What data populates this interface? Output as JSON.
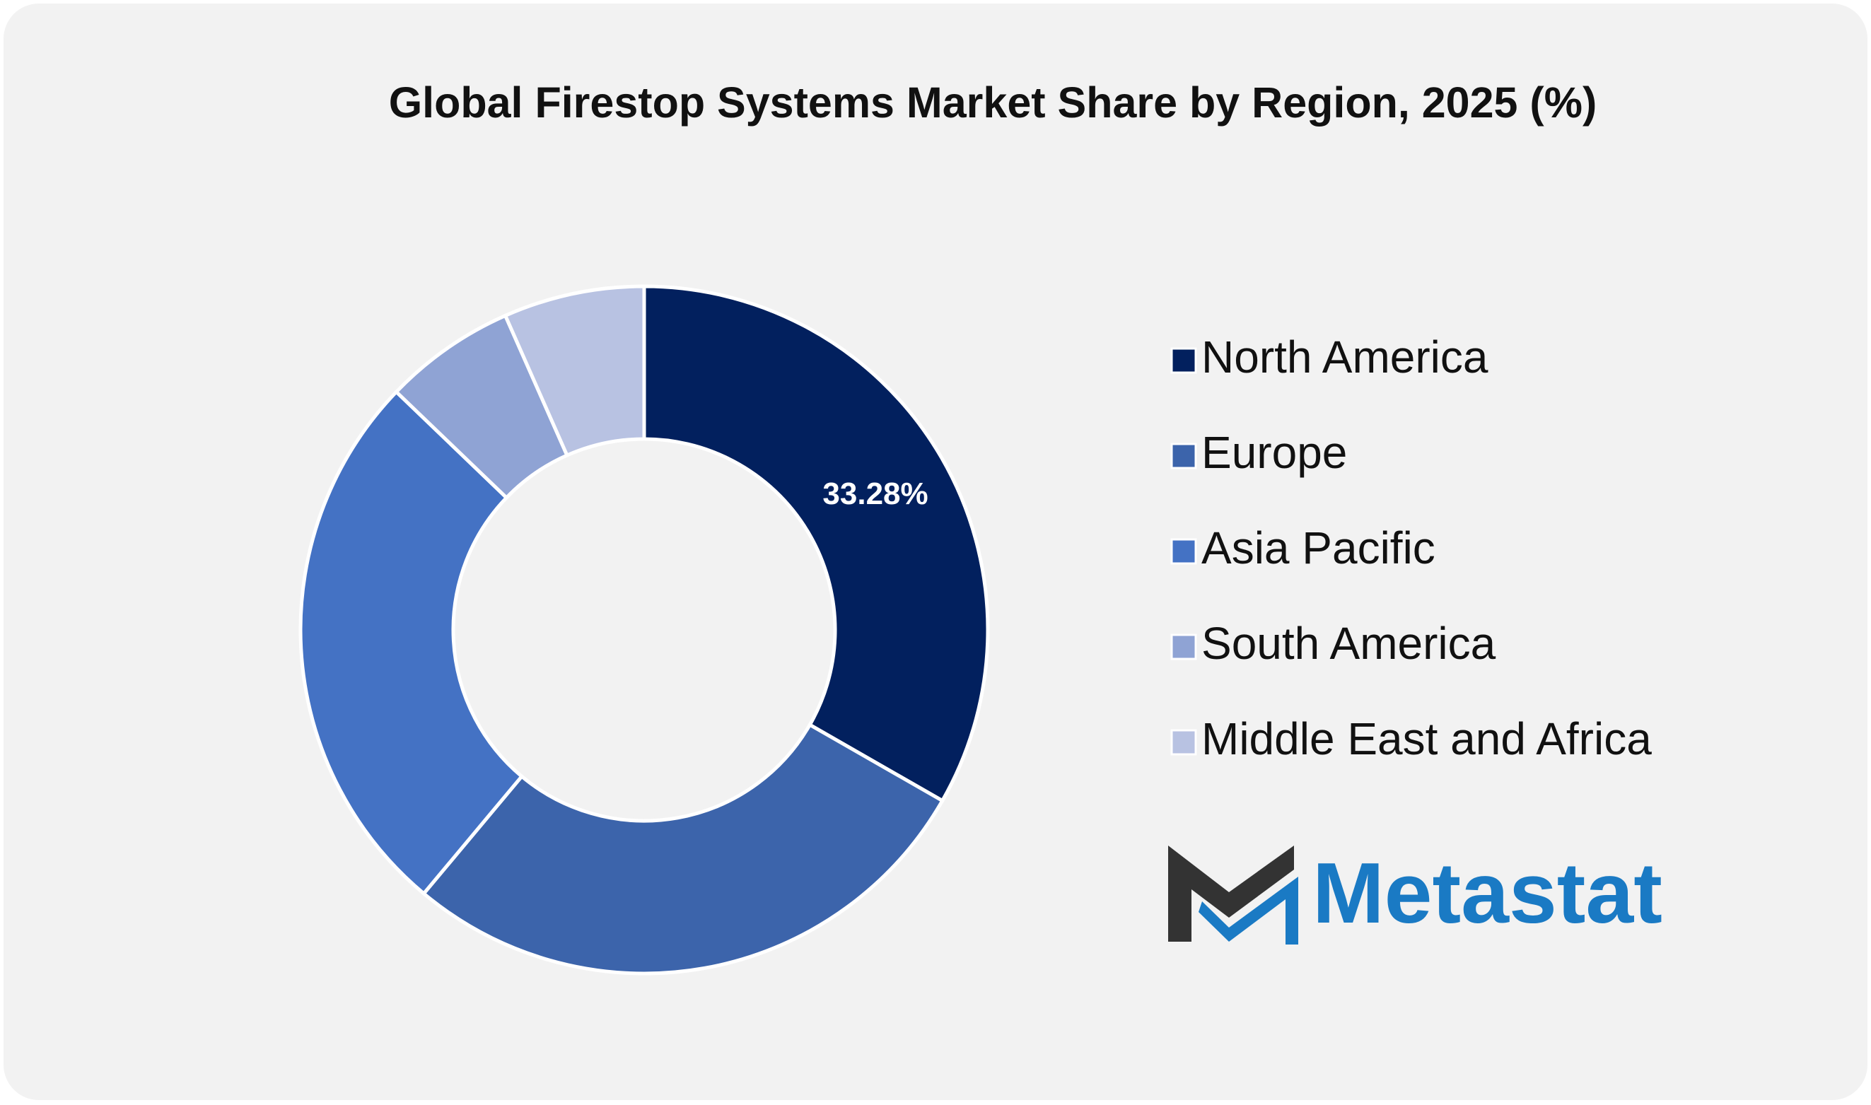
{
  "chart_data": {
    "type": "donut",
    "title": "Global Firestop Systems Market Share by Region, 2025 (%)",
    "categories": [
      "North America",
      "Europe",
      "Asia Pacific",
      "South America",
      "Middle East and Africa"
    ],
    "values": [
      33.28,
      27.8,
      26.1,
      6.2,
      6.62
    ],
    "value_labels": [
      "33.28%",
      null,
      null,
      null,
      null
    ],
    "colors": [
      "#02205e",
      "#3c64ab",
      "#4472c4",
      "#8fa3d4",
      "#b8c2e2"
    ],
    "legend": "right"
  },
  "logo": "Metastat"
}
